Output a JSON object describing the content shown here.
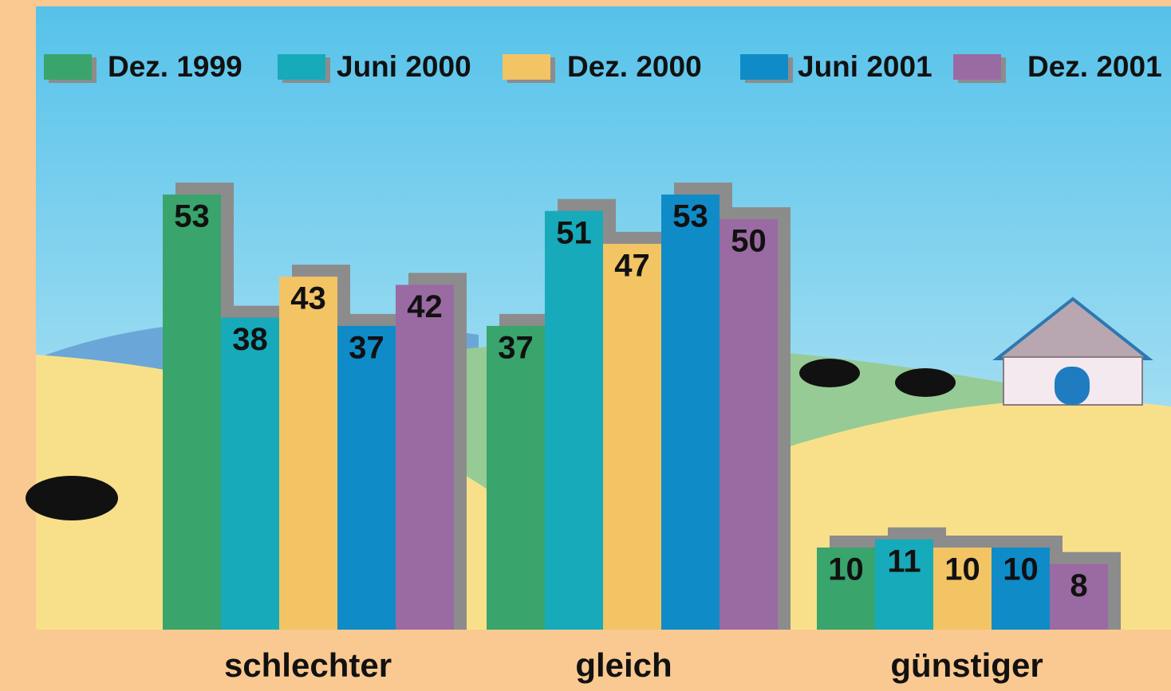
{
  "chart_data": {
    "type": "bar",
    "categories": [
      "schlechter",
      "gleich",
      "günstiger"
    ],
    "series": [
      {
        "name": "Dez. 1999",
        "color": "#39a46c",
        "values": [
          53,
          37,
          10
        ]
      },
      {
        "name": "Juni 2000",
        "color": "#17aabb",
        "values": [
          38,
          51,
          11
        ]
      },
      {
        "name": "Dez. 2000",
        "color": "#f2c464",
        "values": [
          43,
          47,
          10
        ]
      },
      {
        "name": "Juni 2001",
        "color": "#0f8bc8",
        "values": [
          37,
          53,
          10
        ]
      },
      {
        "name": "Dez. 2001",
        "color": "#9a6aa3",
        "values": [
          42,
          50,
          8
        ]
      }
    ]
  }
}
